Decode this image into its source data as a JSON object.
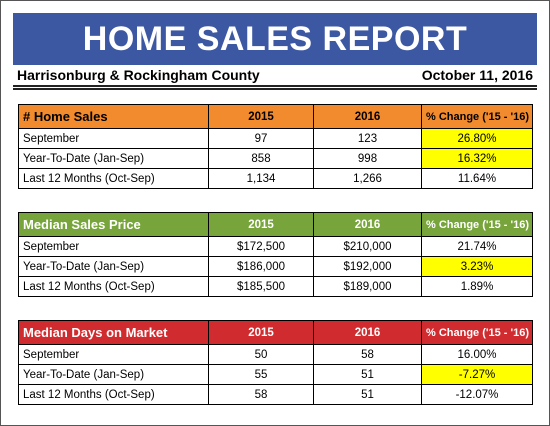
{
  "header": {
    "title": "HOME SALES REPORT",
    "region": "Harrisonburg & Rockingham County",
    "date": "October 11, 2016"
  },
  "colors": {
    "banner": "#3d58a2",
    "home_sales_header": "#f28a2e",
    "median_price_header": "#77a43b",
    "median_days_header": "#d02c2f",
    "highlight": "#ffff00"
  },
  "sections": [
    {
      "title": "# Home Sales",
      "col_2015": "2015",
      "col_2016": "2016",
      "col_change": "% Change ('15 - '16)",
      "rows": [
        {
          "label": "September",
          "v2015": "97",
          "v2016": "123",
          "change": "26.80%",
          "highlighted": true
        },
        {
          "label": "Year-To-Date (Jan-Sep)",
          "v2015": "858",
          "v2016": "998",
          "change": "16.32%",
          "highlighted": true
        },
        {
          "label": "Last 12 Months (Oct-Sep)",
          "v2015": "1,134",
          "v2016": "1,266",
          "change": "11.64%",
          "highlighted": false
        }
      ]
    },
    {
      "title": "Median Sales Price",
      "col_2015": "2015",
      "col_2016": "2016",
      "col_change": "% Change ('15 - '16)",
      "rows": [
        {
          "label": "September",
          "v2015": "$172,500",
          "v2016": "$210,000",
          "change": "21.74%",
          "highlighted": false
        },
        {
          "label": "Year-To-Date (Jan-Sep)",
          "v2015": "$186,000",
          "v2016": "$192,000",
          "change": "3.23%",
          "highlighted": true
        },
        {
          "label": "Last 12 Months (Oct-Sep)",
          "v2015": "$185,500",
          "v2016": "$189,000",
          "change": "1.89%",
          "highlighted": false
        }
      ]
    },
    {
      "title": "Median Days on Market",
      "col_2015": "2015",
      "col_2016": "2016",
      "col_change": "% Change ('15 - '16)",
      "rows": [
        {
          "label": "September",
          "v2015": "50",
          "v2016": "58",
          "change": "16.00%",
          "highlighted": false
        },
        {
          "label": "Year-To-Date (Jan-Sep)",
          "v2015": "55",
          "v2016": "51",
          "change": "-7.27%",
          "highlighted": true
        },
        {
          "label": "Last 12 Months (Oct-Sep)",
          "v2015": "58",
          "v2016": "51",
          "change": "-12.07%",
          "highlighted": false
        }
      ]
    }
  ]
}
